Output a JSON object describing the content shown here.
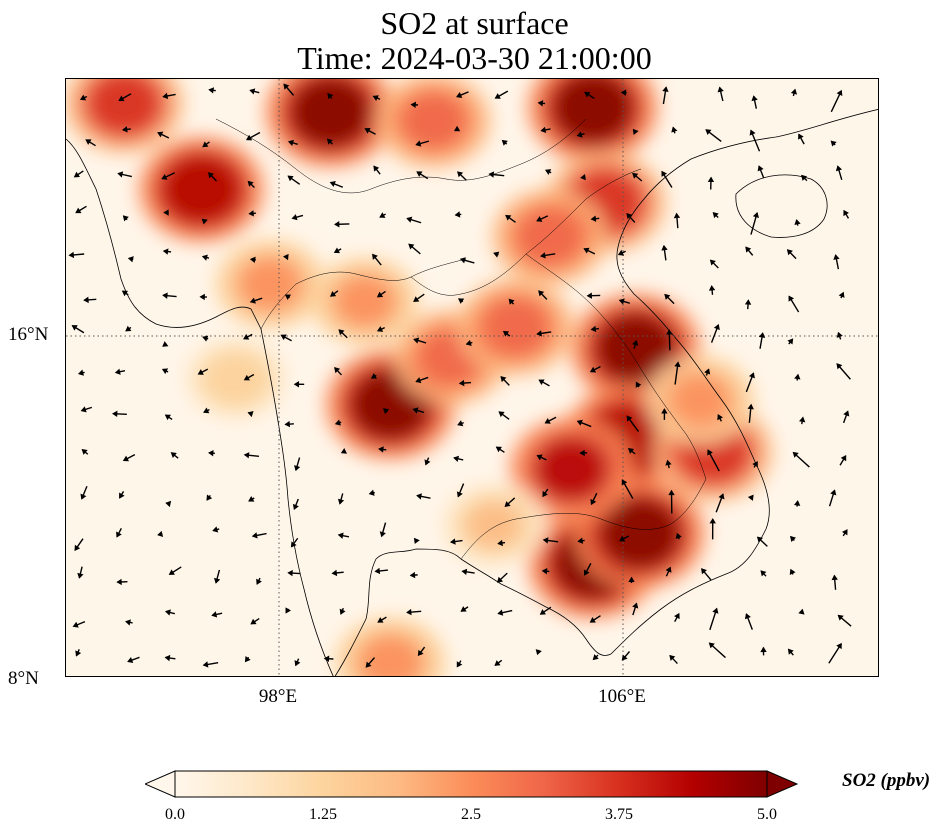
{
  "title": {
    "line1": "SO2 at surface",
    "line2": "Time: 2024-03-30 21:00:00"
  },
  "map": {
    "lat_ticks": [
      {
        "label": "16°N",
        "value": 16
      },
      {
        "label": "8°N",
        "value": 8
      }
    ],
    "lon_ticks": [
      {
        "label": "98°E",
        "value": 98
      },
      {
        "label": "106°E",
        "value": 106
      }
    ],
    "extent": {
      "lon_min": 93,
      "lon_max": 112,
      "lat_min": 8,
      "lat_max": 22
    },
    "gridlines": "dotted"
  },
  "colorbar": {
    "label": "SO2 (ppbv)",
    "ticks": [
      "0.0",
      "1.25",
      "2.5",
      "3.75",
      "5.0"
    ],
    "min": 0,
    "max": 5,
    "extend": "both",
    "colormap": "OrRd",
    "colors": [
      "#fff7ec",
      "#fee8c8",
      "#fdd49e",
      "#fdbb84",
      "#fc8d59",
      "#ef6548",
      "#d7301f",
      "#b30000",
      "#7f0000"
    ]
  },
  "field": {
    "name": "SO2",
    "units": "ppbv",
    "hotspots": [
      {
        "lon": 99.2,
        "lat": 21.2,
        "value": 5.0
      },
      {
        "lon": 96.2,
        "lat": 19.4,
        "value": 4.4
      },
      {
        "lon": 94.4,
        "lat": 21.4,
        "value": 3.6
      },
      {
        "lon": 105.3,
        "lat": 21.3,
        "value": 5.0
      },
      {
        "lon": 105.6,
        "lat": 19.1,
        "value": 3.8
      },
      {
        "lon": 100.6,
        "lat": 14.4,
        "value": 5.0
      },
      {
        "lon": 106.3,
        "lat": 15.7,
        "value": 5.0
      },
      {
        "lon": 106.1,
        "lat": 13.6,
        "value": 4.6
      },
      {
        "lon": 108.1,
        "lat": 13.3,
        "value": 3.6
      },
      {
        "lon": 105.3,
        "lat": 10.7,
        "value": 5.0
      },
      {
        "lon": 106.4,
        "lat": 11.4,
        "value": 5.0
      },
      {
        "lon": 104.8,
        "lat": 12.9,
        "value": 4.1
      },
      {
        "lon": 104.3,
        "lat": 18.3,
        "value": 3.2
      },
      {
        "lon": 102.0,
        "lat": 15.5,
        "value": 3.0
      },
      {
        "lon": 103.5,
        "lat": 16.2,
        "value": 3.3
      },
      {
        "lon": 97.8,
        "lat": 17.2,
        "value": 2.4
      },
      {
        "lon": 101.6,
        "lat": 21.0,
        "value": 3.0
      },
      {
        "lon": 100.0,
        "lat": 16.8,
        "value": 2.2
      },
      {
        "lon": 103.0,
        "lat": 11.6,
        "value": 1.6
      },
      {
        "lon": 100.6,
        "lat": 8.4,
        "value": 2.6
      },
      {
        "lon": 107.8,
        "lat": 14.5,
        "value": 2.3
      },
      {
        "lon": 97.0,
        "lat": 15.0,
        "value": 1.3
      }
    ]
  },
  "wind_arrows": "quiver overlay"
}
